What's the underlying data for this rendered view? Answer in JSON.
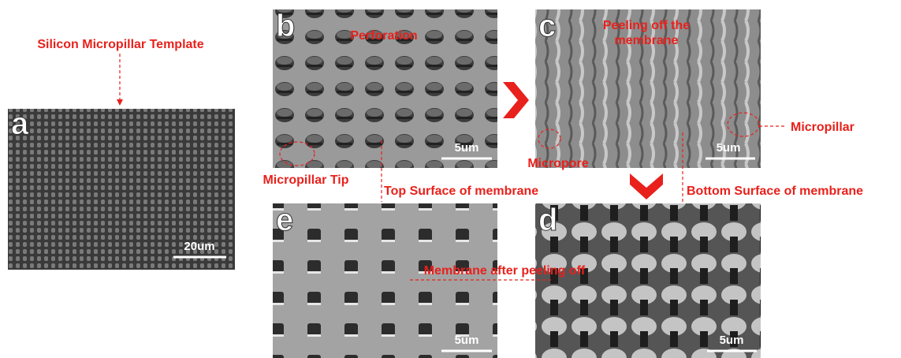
{
  "title": "Silicon Micropillar Template",
  "panels": [
    {
      "label": "a",
      "scale": "20um"
    },
    {
      "label": "b",
      "scale": "5um"
    },
    {
      "label": "c",
      "scale": "5um"
    },
    {
      "label": "e",
      "scale": "5um"
    },
    {
      "label": "d",
      "scale": "5um"
    }
  ],
  "annotations": {
    "perforation": "Perforation",
    "peeling_line1": "Peeling off the",
    "peeling_line2": "membrane",
    "micropillar_tip": "Micropillar Tip",
    "micropore": "Micropore",
    "micropillar": "Micropillar",
    "top_surface": "Top Surface of membrane",
    "bottom_surface": "Bottom Surface of membrane",
    "membrane_after": "Membrane after peeling off"
  }
}
